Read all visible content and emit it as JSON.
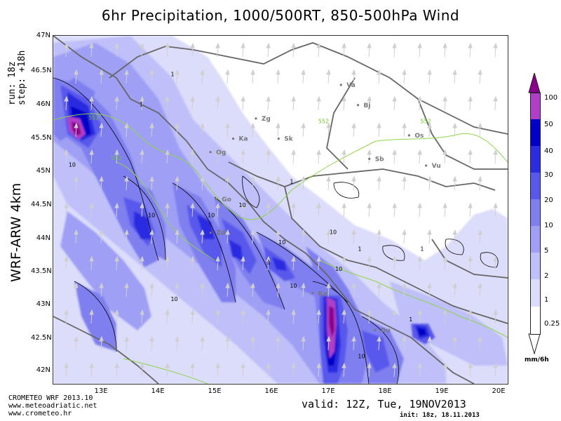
{
  "title": "6hr Precipitation, 1000/500RT, 850-500hPa Wind",
  "side_title": "WRF-ARW 4km",
  "run_label": "run:  18z",
  "step_label": "step: +18h",
  "lat_labels": [
    "47N",
    "46.5N",
    "46N",
    "45.5N",
    "45N",
    "44.5N",
    "44N",
    "43.5N",
    "43N",
    "42.5N",
    "42N"
  ],
  "lon_labels": [
    "13E",
    "14E",
    "15E",
    "16E",
    "17E",
    "18E",
    "19E",
    "20E"
  ],
  "legend": {
    "labels": [
      "100",
      "50",
      "40",
      "30",
      "20",
      "10",
      "5",
      "2",
      "1",
      "0.25"
    ],
    "unit": "mm/6h",
    "colors": [
      "#8b008b",
      "#b03fc8",
      "#0000c8",
      "#2b2be0",
      "#5858ec",
      "#7f7ff0",
      "#9f9ff5",
      "#bfbff9",
      "#dcdcfb",
      "#ffffff"
    ]
  },
  "cities": [
    {
      "code": "Va",
      "lon": 17.5,
      "lat": 46.3
    },
    {
      "code": "Bj",
      "lon": 17.8,
      "lat": 46.0
    },
    {
      "code": "Zg",
      "lon": 16.0,
      "lat": 45.8
    },
    {
      "code": "Ka",
      "lon": 15.6,
      "lat": 45.5
    },
    {
      "code": "Sk",
      "lon": 16.4,
      "lat": 45.5
    },
    {
      "code": "Os",
      "lon": 18.7,
      "lat": 45.55
    },
    {
      "code": "Sb",
      "lon": 18.0,
      "lat": 45.2
    },
    {
      "code": "Vu",
      "lon": 19.0,
      "lat": 45.1
    },
    {
      "code": "Og",
      "lon": 15.2,
      "lat": 45.3
    },
    {
      "code": "Go",
      "lon": 15.3,
      "lat": 44.6
    },
    {
      "code": "Zd",
      "lon": 15.2,
      "lat": 44.1
    },
    {
      "code": "Kp",
      "lon": 17.0,
      "lat": 43.2
    },
    {
      "code": "Du",
      "lon": 18.1,
      "lat": 42.65
    }
  ],
  "contour_labels": {
    "thickness": [
      {
        "text": "552",
        "lon": 12.95,
        "lat": 45.75
      },
      {
        "text": "552",
        "lon": 13.35,
        "lat": 45.15
      },
      {
        "text": "552",
        "lon": 17.0,
        "lat": 45.7
      },
      {
        "text": "552",
        "lon": 18.8,
        "lat": 45.7
      }
    ],
    "precip": [
      {
        "text": "10",
        "lon": 12.6,
        "lat": 45.05
      },
      {
        "text": "10",
        "lon": 14.0,
        "lat": 44.3
      },
      {
        "text": "10",
        "lon": 15.05,
        "lat": 44.3
      },
      {
        "text": "10",
        "lon": 15.6,
        "lat": 44.45
      },
      {
        "text": "10",
        "lon": 16.3,
        "lat": 43.9
      },
      {
        "text": "10",
        "lon": 17.3,
        "lat": 43.5
      },
      {
        "text": "10",
        "lon": 16.5,
        "lat": 43.25
      },
      {
        "text": "10",
        "lon": 14.4,
        "lat": 43.05
      },
      {
        "text": "10",
        "lon": 17.7,
        "lat": 42.2
      },
      {
        "text": "10",
        "lon": 17.2,
        "lat": 44.05
      },
      {
        "text": "1",
        "lon": 16.5,
        "lat": 44.8
      },
      {
        "text": "1",
        "lon": 17.7,
        "lat": 43.8
      },
      {
        "text": "1",
        "lon": 18.8,
        "lat": 43.8
      },
      {
        "text": "1",
        "lon": 14.4,
        "lat": 46.4
      },
      {
        "text": "1",
        "lon": 13.85,
        "lat": 45.95
      },
      {
        "text": "1",
        "lon": 16.1,
        "lat": 43.6
      },
      {
        "text": "1",
        "lon": 18.6,
        "lat": 42.75
      }
    ]
  },
  "footer": {
    "line1": "CROMETEO WRF 2013.10",
    "line2": "www.meteoadriatic.net",
    "line3": "www.crometeo.hr",
    "valid": "valid: 12Z, Tue, 19NOV2013",
    "init": "init: 18z, 18.11.2013"
  }
}
